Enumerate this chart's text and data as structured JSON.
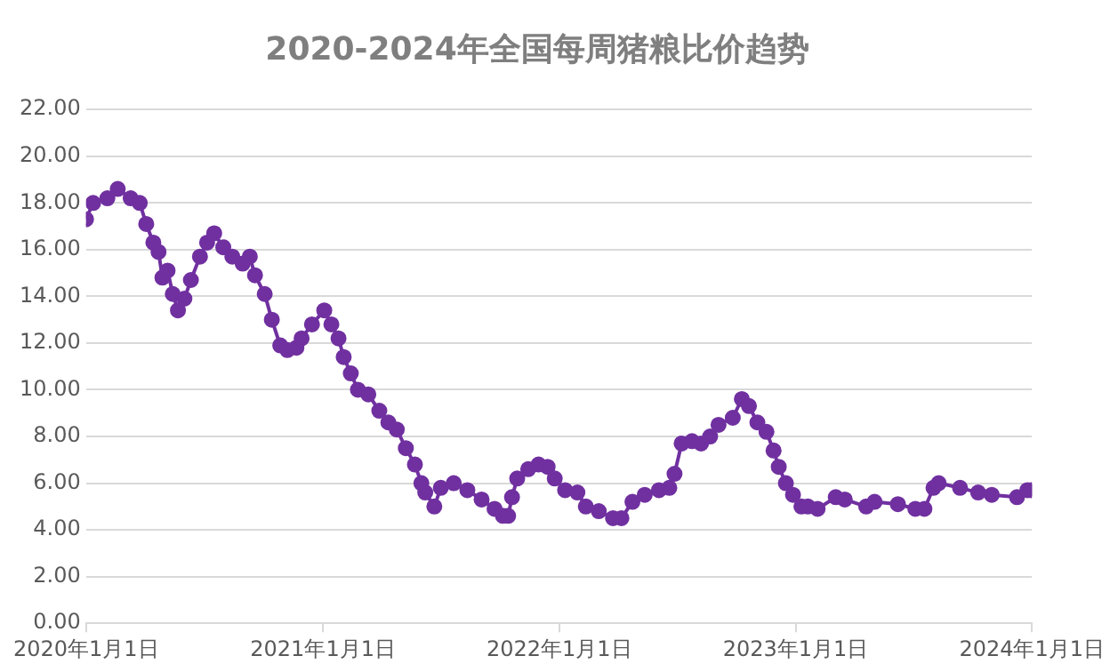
{
  "chart_data": {
    "type": "line",
    "title": "2020-2024年全国每周猪粮比价趋势",
    "x": [
      "2020-01-01",
      "2020-01-12",
      "2020-02-03",
      "2020-02-19",
      "2020-03-10",
      "2020-03-24",
      "2020-04-03",
      "2020-04-14",
      "2020-04-22",
      "2020-04-28",
      "2020-05-06",
      "2020-05-14",
      "2020-05-22",
      "2020-06-01",
      "2020-06-11",
      "2020-06-25",
      "2020-07-06",
      "2020-07-17",
      "2020-07-31",
      "2020-08-14",
      "2020-08-30",
      "2020-09-10",
      "2020-09-18",
      "2020-10-03",
      "2020-10-14",
      "2020-10-27",
      "2020-11-07",
      "2020-11-21",
      "2020-11-29",
      "2020-12-15",
      "2021-01-03",
      "2021-01-14",
      "2021-01-25",
      "2021-02-02",
      "2021-02-13",
      "2021-02-24",
      "2021-03-12",
      "2021-03-29",
      "2021-04-12",
      "2021-04-25",
      "2021-05-09",
      "2021-05-23",
      "2021-06-02",
      "2021-06-08",
      "2021-06-22",
      "2021-07-02",
      "2021-07-22",
      "2021-08-12",
      "2021-09-03",
      "2021-09-23",
      "2021-10-06",
      "2021-10-14",
      "2021-10-20",
      "2021-10-28",
      "2021-11-14",
      "2021-11-30",
      "2021-12-14",
      "2021-12-25",
      "2022-01-10",
      "2022-01-29",
      "2022-02-11",
      "2022-03-03",
      "2022-03-25",
      "2022-04-07",
      "2022-04-24",
      "2022-05-13",
      "2022-06-04",
      "2022-06-20",
      "2022-06-28",
      "2022-07-09",
      "2022-07-25",
      "2022-08-08",
      "2022-08-22",
      "2022-09-04",
      "2022-09-26",
      "2022-10-10",
      "2022-10-21",
      "2022-11-03",
      "2022-11-17",
      "2022-11-28",
      "2022-12-06",
      "2022-12-17",
      "2022-12-28",
      "2023-01-10",
      "2023-01-20",
      "2023-02-04",
      "2023-03-04",
      "2023-03-18",
      "2023-04-20",
      "2023-05-03",
      "2023-06-08",
      "2023-07-05",
      "2023-07-19",
      "2023-08-02",
      "2023-08-10",
      "2023-09-12",
      "2023-10-10",
      "2023-10-31",
      "2023-12-09",
      "2023-12-25",
      "2023-12-31"
    ],
    "series": [
      {
        "color": "#7030a0",
        "values": [
          17.3,
          18.0,
          18.2,
          18.6,
          18.2,
          18.0,
          17.1,
          16.3,
          15.9,
          14.8,
          15.1,
          14.1,
          13.4,
          13.9,
          14.7,
          15.7,
          16.3,
          16.7,
          16.1,
          15.7,
          15.4,
          15.7,
          14.9,
          14.1,
          13.0,
          11.9,
          11.7,
          11.8,
          12.2,
          12.8,
          13.4,
          12.8,
          12.2,
          11.4,
          10.7,
          10.0,
          9.8,
          9.1,
          8.6,
          8.3,
          7.5,
          6.8,
          6.0,
          5.6,
          5.0,
          5.8,
          6.0,
          5.7,
          5.3,
          4.9,
          4.6,
          4.6,
          5.4,
          6.2,
          6.6,
          6.8,
          6.7,
          6.2,
          5.7,
          5.6,
          5.0,
          4.8,
          4.5,
          4.5,
          5.2,
          5.5,
          5.7,
          5.8,
          6.4,
          7.7,
          7.8,
          7.7,
          8.0,
          8.5,
          8.8,
          9.6,
          9.3,
          8.6,
          8.2,
          7.4,
          6.7,
          6.0,
          5.5,
          5.0,
          5.0,
          4.9,
          5.4,
          5.3,
          5.0,
          5.2,
          5.1,
          4.9,
          4.9,
          5.8,
          6.0,
          5.8,
          5.6,
          5.5,
          5.4,
          5.7,
          5.7
        ]
      }
    ],
    "xlim": [
      "2020-01-01",
      "2024-01-01"
    ],
    "xticks": [
      {
        "value": "2020-01-01",
        "label": "2020年1月1日"
      },
      {
        "value": "2021-01-01",
        "label": "2021年1月1日"
      },
      {
        "value": "2022-01-01",
        "label": "2022年1月1日"
      },
      {
        "value": "2023-01-01",
        "label": "2023年1月1日"
      },
      {
        "value": "2024-01-01",
        "label": "2024年1月1日"
      }
    ],
    "ylim": [
      0,
      22
    ],
    "yticks": [
      {
        "value": 0,
        "label": "0.00"
      },
      {
        "value": 2,
        "label": "2.00"
      },
      {
        "value": 4,
        "label": "4.00"
      },
      {
        "value": 6,
        "label": "6.00"
      },
      {
        "value": 8,
        "label": "8.00"
      },
      {
        "value": 10,
        "label": "10.00"
      },
      {
        "value": 12,
        "label": "12.00"
      },
      {
        "value": 14,
        "label": "14.00"
      },
      {
        "value": 16,
        "label": "16.00"
      },
      {
        "value": 18,
        "label": "18.00"
      },
      {
        "value": 20,
        "label": "20.00"
      },
      {
        "value": 22,
        "label": "22.00"
      }
    ],
    "grid": "y",
    "marker": "circle",
    "line_style": "solid",
    "legend": false
  }
}
